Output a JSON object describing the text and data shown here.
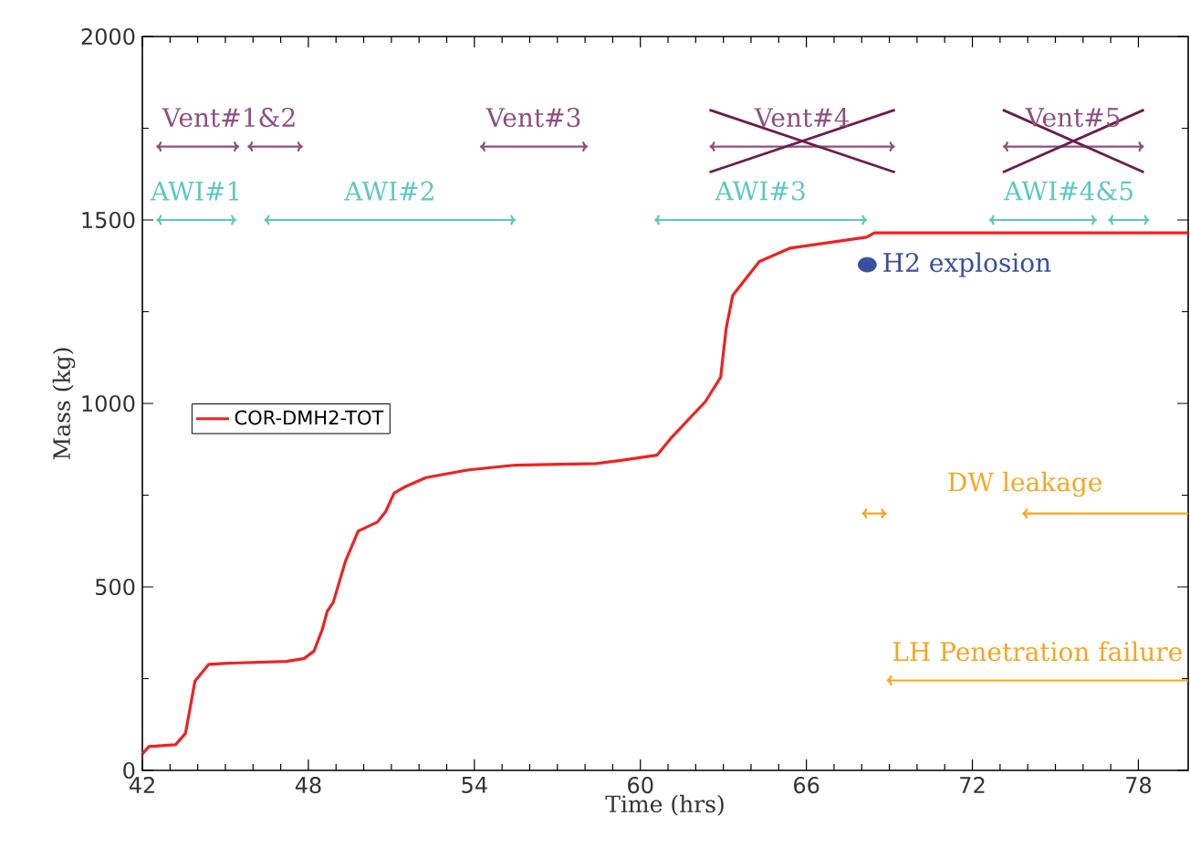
{
  "chart_data": {
    "type": "line",
    "xlabel": "Time (hrs)",
    "ylabel": "Mass (kg)",
    "xlim": [
      42,
      79.8
    ],
    "ylim": [
      0,
      2000
    ],
    "xticks": [
      42,
      48,
      54,
      60,
      66,
      72,
      78
    ],
    "yticks": [
      0,
      500,
      1000,
      1500,
      2000
    ],
    "legend": "left",
    "grid": false,
    "series": [
      {
        "name": "COR-DMH2-TOT",
        "color": "#ee2222",
        "marker": "none",
        "x": [
          42.0,
          42.24,
          43.2,
          43.56,
          43.9,
          44.4,
          45.1,
          47.2,
          47.85,
          48.2,
          48.5,
          48.68,
          48.9,
          49.34,
          49.8,
          50.5,
          50.8,
          51.1,
          51.5,
          52.25,
          53.8,
          55.5,
          58.4,
          59.3,
          60.6,
          61.1,
          62.35,
          62.9,
          63.1,
          63.34,
          64.3,
          65.4,
          66.96,
          68.17,
          68.46,
          79.8
        ],
        "values": [
          45,
          65,
          70,
          101,
          243,
          289,
          292,
          297,
          305,
          325,
          383,
          433,
          458,
          570,
          652,
          677,
          706,
          756,
          773,
          798,
          819,
          832,
          836,
          845,
          859,
          905,
          1005,
          1071,
          1204,
          1295,
          1387,
          1423,
          1440,
          1453,
          1465,
          1465
        ]
      },
      {
        "name": "Vent#1&2",
        "color": "#8e4f7e",
        "marker": "cross",
        "x": [
          42.5,
          45.5,
          null,
          45.8,
          47.8
        ],
        "values": [
          1700,
          1700,
          null,
          1700,
          1700
        ]
      },
      {
        "name": "Vent#3",
        "color": "#8e4f7e",
        "marker": "cross",
        "x": [
          54.2,
          58.1
        ],
        "values": [
          1700,
          1700
        ]
      },
      {
        "name": "Vent#4",
        "color": "#8e4f7e",
        "marker": "cross",
        "x": [
          62.5,
          69.2
        ],
        "values": [
          1700,
          1700
        ]
      },
      {
        "name": "Vent#5",
        "color": "#8e4f7e",
        "marker": "cross",
        "x": [
          73.1,
          78.2
        ],
        "values": [
          1700,
          1700
        ]
      },
      {
        "color": "#6b1d4f",
        "marker": "none",
        "x": [
          62.5,
          69.2
        ],
        "values": [
          1800,
          1630
        ]
      },
      {
        "color": "#6b1d4f",
        "marker": "none",
        "x": [
          62.5,
          69.2
        ],
        "values": [
          1630,
          1800
        ]
      },
      {
        "color": "#6b1d4f",
        "marker": "none",
        "x": [
          73.1,
          78.2
        ],
        "values": [
          1800,
          1630
        ]
      },
      {
        "color": "#6b1d4f",
        "marker": "none",
        "x": [
          73.1,
          78.2
        ],
        "values": [
          1630,
          1800
        ]
      },
      {
        "name": "AWI#1",
        "color": "#5cc8c0",
        "marker": "cross",
        "x": [
          42.5,
          45.4
        ],
        "values": [
          1500,
          1500
        ]
      },
      {
        "name": "AWI#2",
        "color": "#5cc8c0",
        "marker": "cross",
        "x": [
          46.4,
          55.5
        ],
        "values": [
          1500,
          1500
        ]
      },
      {
        "name": "AWI#3",
        "color": "#5cc8c0",
        "marker": "cross",
        "x": [
          60.5,
          68.2
        ],
        "values": [
          1500,
          1500
        ]
      },
      {
        "name": "AWI#4&5",
        "color": "#5cc8c0",
        "marker": "cross",
        "x": [
          72.6,
          76.5,
          null,
          76.9,
          78.4
        ],
        "values": [
          1500,
          1500,
          null,
          1500,
          1500
        ]
      },
      {
        "name": "H2 explosion",
        "type": "scatter",
        "marker": "circle",
        "color": "#3a4fa0",
        "x": [
          68.2
        ],
        "values": [
          1378
        ]
      },
      {
        "name": "DW leakage",
        "color": "#f5a623",
        "marker": "cross",
        "x": [
          68.0,
          68.9,
          null,
          79.8,
          73.8
        ],
        "values": [
          700,
          700,
          null,
          700,
          700
        ]
      },
      {
        "name": "LH Penetration failure",
        "color": "#f5a623",
        "marker": "cross",
        "x": [
          79.8,
          68.9
        ],
        "values": [
          245,
          245
        ]
      }
    ]
  }
}
